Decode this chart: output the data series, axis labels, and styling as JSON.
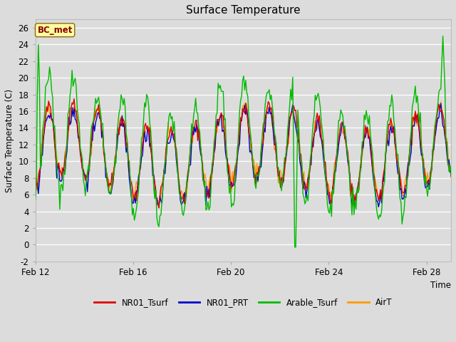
{
  "title": "Surface Temperature",
  "xlabel": "Time",
  "ylabel": "Surface Temperature (C)",
  "ylim": [
    -2,
    27
  ],
  "yticks": [
    -2,
    0,
    2,
    4,
    6,
    8,
    10,
    12,
    14,
    16,
    18,
    20,
    22,
    24,
    26
  ],
  "xlim_start": 0,
  "xlim_end": 17,
  "xtick_positions": [
    0,
    4,
    8,
    12,
    16
  ],
  "xtick_labels": [
    "Feb 12",
    "Feb 16",
    "Feb 20",
    "Feb 24",
    "Feb 28"
  ],
  "bg_color": "#dcdcdc",
  "plot_bg_color": "#dcdcdc",
  "series_colors": {
    "NR01_Tsurf": "#dd0000",
    "NR01_PRT": "#0000cc",
    "Arable_Tsurf": "#00bb00",
    "AirT": "#ff9900"
  },
  "legend_labels": [
    "NR01_Tsurf",
    "NR01_PRT",
    "Arable_Tsurf",
    "AirT"
  ],
  "annotation_text": "BC_met",
  "annotation_color": "#8b0000",
  "annotation_bg": "#ffffa0",
  "annotation_border": "#8b6914",
  "figsize": [
    6.4,
    4.8
  ],
  "dpi": 100
}
